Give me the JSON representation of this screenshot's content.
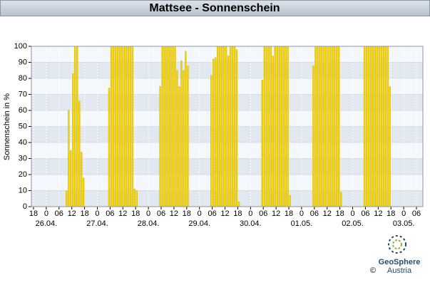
{
  "chart_data": {
    "type": "bar",
    "title": "Mattsee - Sonnenschein",
    "y_label": "Sonnenschein in %",
    "color": "#f2d200",
    "grid": true,
    "x": [
      "26.04. 10:00",
      "26.04. 11:00",
      "26.04. 12:00",
      "26.04. 13:00",
      "26.04. 14:00",
      "26.04. 15:00",
      "26.04. 16:00",
      "26.04. 17:00",
      "26.04. 18:00",
      "27.04. 06:00",
      "27.04. 07:00",
      "27.04. 08:00",
      "27.04. 09:00",
      "27.04. 10:00",
      "27.04. 11:00",
      "27.04. 12:00",
      "27.04. 13:00",
      "27.04. 14:00",
      "27.04. 15:00",
      "27.04. 16:00",
      "27.04. 17:00",
      "27.04. 18:00",
      "27.04. 19:00",
      "28.04. 06:00",
      "28.04. 07:00",
      "28.04. 08:00",
      "28.04. 09:00",
      "28.04. 10:00",
      "28.04. 11:00",
      "28.04. 12:00",
      "28.04. 13:00",
      "28.04. 14:00",
      "28.04. 15:00",
      "28.04. 16:00",
      "28.04. 17:00",
      "28.04. 18:00",
      "28.04. 19:00",
      "29.04. 06:00",
      "29.04. 07:00",
      "29.04. 08:00",
      "29.04. 09:00",
      "29.04. 10:00",
      "29.04. 11:00",
      "29.04. 12:00",
      "29.04. 13:00",
      "29.04. 14:00",
      "29.04. 15:00",
      "29.04. 16:00",
      "29.04. 17:00",
      "29.04. 18:00",
      "29.04. 19:00",
      "30.04. 06:00",
      "30.04. 07:00",
      "30.04. 08:00",
      "30.04. 09:00",
      "30.04. 10:00",
      "30.04. 11:00",
      "30.04. 12:00",
      "30.04. 13:00",
      "30.04. 14:00",
      "30.04. 15:00",
      "30.04. 16:00",
      "30.04. 17:00",
      "30.04. 18:00",
      "30.04. 19:00",
      "01.05. 06:00",
      "01.05. 07:00",
      "01.05. 08:00",
      "01.05. 09:00",
      "01.05. 10:00",
      "01.05. 11:00",
      "01.05. 12:00",
      "01.05. 13:00",
      "01.05. 14:00",
      "01.05. 15:00",
      "01.05. 16:00",
      "01.05. 17:00",
      "01.05. 18:00",
      "01.05. 19:00",
      "02.05. 06:00",
      "02.05. 07:00",
      "02.05. 08:00",
      "02.05. 09:00",
      "02.05. 10:00",
      "02.05. 11:00",
      "02.05. 12:00",
      "02.05. 13:00",
      "02.05. 14:00",
      "02.05. 15:00",
      "02.05. 16:00",
      "02.05. 17:00",
      "02.05. 18:00"
    ],
    "values": [
      10,
      60,
      35,
      83,
      100,
      100,
      66,
      34,
      18,
      74,
      100,
      100,
      100,
      100,
      100,
      100,
      100,
      100,
      100,
      100,
      100,
      11,
      10,
      75,
      100,
      100,
      100,
      100,
      100,
      100,
      100,
      85,
      75,
      91,
      85,
      97,
      88,
      82,
      92,
      93,
      100,
      100,
      100,
      100,
      100,
      94,
      100,
      100,
      100,
      98,
      3,
      79,
      100,
      100,
      100,
      100,
      94,
      100,
      100,
      100,
      100,
      100,
      100,
      100,
      7,
      88,
      100,
      100,
      100,
      100,
      100,
      100,
      100,
      100,
      100,
      100,
      100,
      100,
      9,
      100,
      100,
      100,
      100,
      100,
      100,
      100,
      100,
      100,
      100,
      100,
      100,
      75
    ],
    "xlim": [
      "25.04. 17:00",
      "03.05. 09:00"
    ],
    "xticks": [
      {
        "value": "25.04. 18:00",
        "label": "18"
      },
      {
        "value": "26.04. 00:00",
        "label": "0"
      },
      {
        "value": "26.04. 06:00",
        "label": "06"
      },
      {
        "value": "26.04. 12:00",
        "label": "12"
      },
      {
        "value": "26.04. 18:00",
        "label": "18"
      },
      {
        "value": "27.04. 00:00",
        "label": "0"
      },
      {
        "value": "27.04. 06:00",
        "label": "06"
      },
      {
        "value": "27.04. 12:00",
        "label": "12"
      },
      {
        "value": "27.04. 18:00",
        "label": "18"
      },
      {
        "value": "28.04. 00:00",
        "label": "0"
      },
      {
        "value": "28.04. 06:00",
        "label": "06"
      },
      {
        "value": "28.04. 12:00",
        "label": "12"
      },
      {
        "value": "28.04. 18:00",
        "label": "18"
      },
      {
        "value": "29.04. 00:00",
        "label": "0"
      },
      {
        "value": "29.04. 06:00",
        "label": "06"
      },
      {
        "value": "29.04. 12:00",
        "label": "12"
      },
      {
        "value": "29.04. 18:00",
        "label": "18"
      },
      {
        "value": "30.04. 00:00",
        "label": "0"
      },
      {
        "value": "30.04. 06:00",
        "label": "06"
      },
      {
        "value": "30.04. 12:00",
        "label": "12"
      },
      {
        "value": "30.04. 18:00",
        "label": "18"
      },
      {
        "value": "01.05. 00:00",
        "label": "0"
      },
      {
        "value": "01.05. 06:00",
        "label": "06"
      },
      {
        "value": "01.05. 12:00",
        "label": "12"
      },
      {
        "value": "01.05. 18:00",
        "label": "18"
      },
      {
        "value": "02.05. 00:00",
        "label": "0"
      },
      {
        "value": "02.05. 06:00",
        "label": "06"
      },
      {
        "value": "02.05. 12:00",
        "label": "12"
      },
      {
        "value": "02.05. 18:00",
        "label": "18"
      },
      {
        "value": "03.05. 00:00",
        "label": "0"
      },
      {
        "value": "03.05. 06:00",
        "label": "06"
      }
    ],
    "date_ticks": [
      {
        "value": "26.04. 00:00",
        "label": "26.04."
      },
      {
        "value": "27.04. 00:00",
        "label": "27.04."
      },
      {
        "value": "28.04. 00:00",
        "label": "28.04."
      },
      {
        "value": "29.04. 00:00",
        "label": "29.04."
      },
      {
        "value": "30.04. 00:00",
        "label": "30.04."
      },
      {
        "value": "01.05. 00:00",
        "label": "01.05."
      },
      {
        "value": "02.05. 00:00",
        "label": "02.05."
      },
      {
        "value": "03.05. 00:00",
        "label": "03.05."
      }
    ],
    "ylim": [
      0,
      100
    ],
    "yticks": [
      0,
      10,
      20,
      30,
      40,
      50,
      60,
      70,
      80,
      90,
      100
    ]
  },
  "logo": {
    "name": "GeoSphere",
    "country": "Austria",
    "copyright": "©"
  }
}
